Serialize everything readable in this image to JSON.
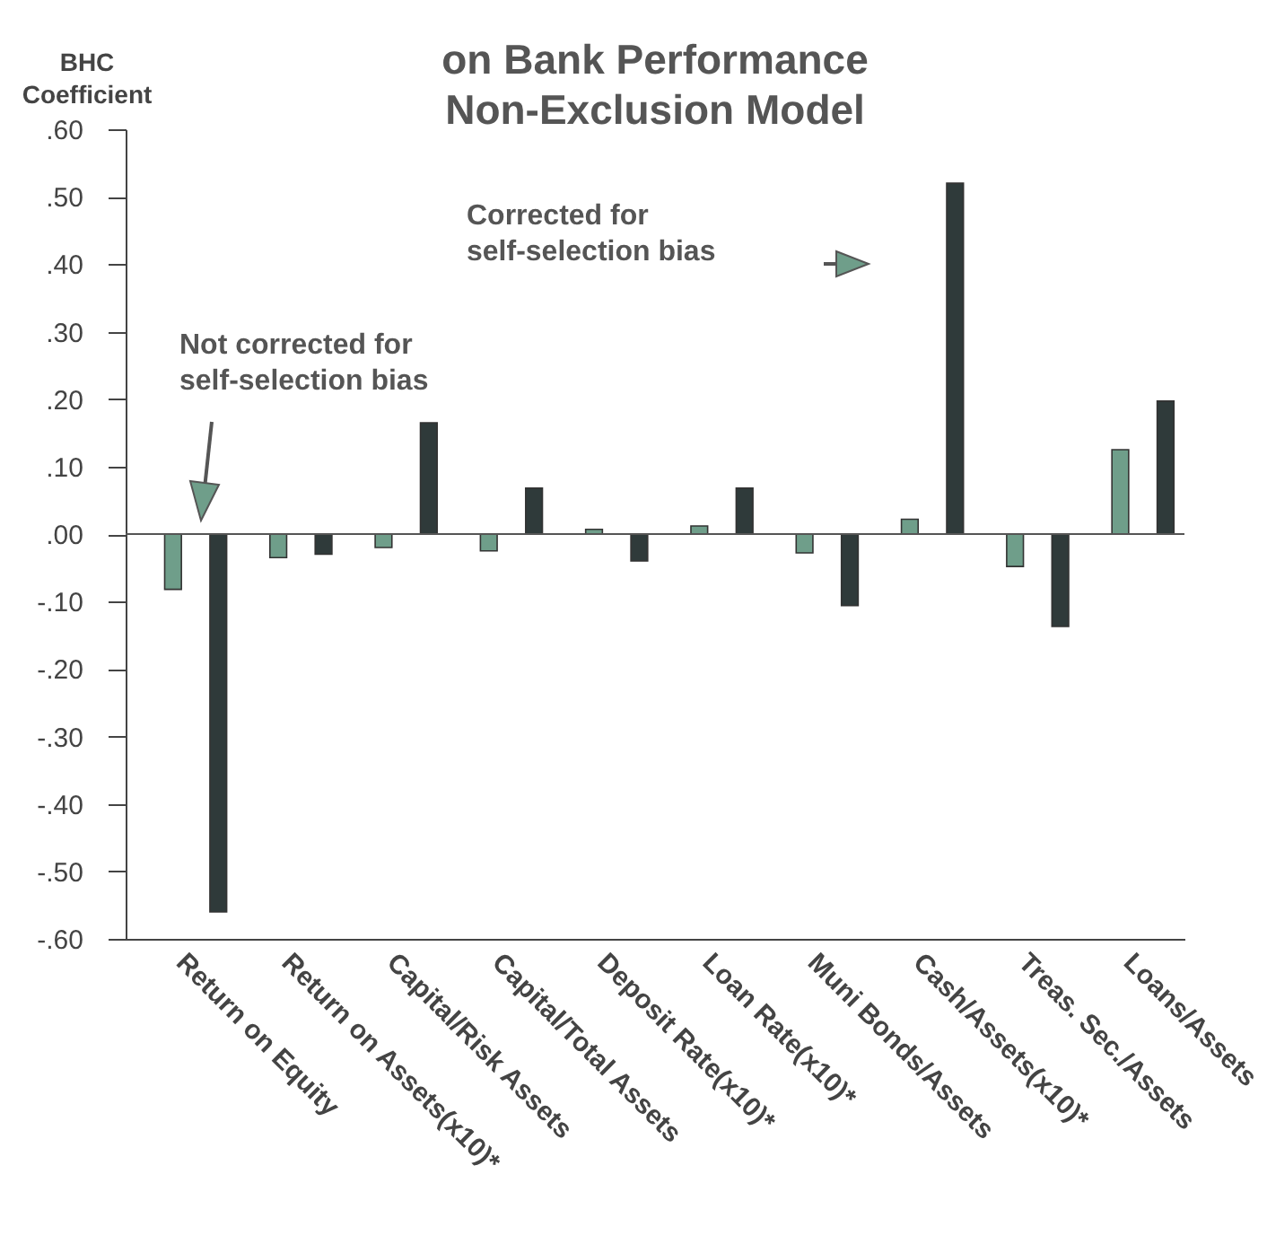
{
  "chart_data": {
    "type": "bar",
    "title": "on Bank Performance\nNon-Exclusion Model",
    "ylabel": "BHC Coefficient",
    "categories": [
      "Return on Equity",
      "Return on Assets(x10)*",
      "Capital/Risk Assets",
      "Capital/Total Assets",
      "Deposit Rate(x10)*",
      "Loan Rate(x10)*",
      "Muni Bonds/Assets",
      "Cash/Assets(x10)*",
      "Treas. Sec./Assets",
      "Loans/Assets"
    ],
    "series": [
      {
        "color": "#6f9e8a",
        "values": [
          -0.082,
          -0.035,
          -0.02,
          -0.025,
          0.007,
          0.012,
          -0.028,
          0.022,
          -0.048,
          0.125
        ]
      },
      {
        "color": "#2f3a3a",
        "values": [
          -0.56,
          -0.03,
          0.165,
          0.068,
          -0.04,
          0.068,
          -0.106,
          0.52,
          -0.137,
          0.197
        ]
      }
    ],
    "ylim": [
      -0.6,
      0.6
    ],
    "yticks": [
      {
        "value": 0.6,
        "label": ".60"
      },
      {
        "value": 0.5,
        "label": ".50"
      },
      {
        "value": 0.4,
        "label": ".40"
      },
      {
        "value": 0.3,
        "label": ".30"
      },
      {
        "value": 0.2,
        "label": ".20"
      },
      {
        "value": 0.1,
        "label": ".10"
      },
      {
        "value": 0,
        "label": ".00"
      },
      {
        "value": -0.1,
        "label": "-.10"
      },
      {
        "value": -0.2,
        "label": "-.20"
      },
      {
        "value": -0.3,
        "label": "-.30"
      },
      {
        "value": -0.4,
        "label": "-.40"
      },
      {
        "value": -0.5,
        "label": "-.50"
      },
      {
        "value": -0.6,
        "label": "-.60"
      }
    ],
    "ref_lines": [
      {
        "axis": "y",
        "value": 0,
        "color": "#555555"
      }
    ],
    "annotations": [
      "Not corrected for self-selection bias",
      "Corrected for self-selection bias"
    ],
    "legend": false,
    "grid": false
  }
}
